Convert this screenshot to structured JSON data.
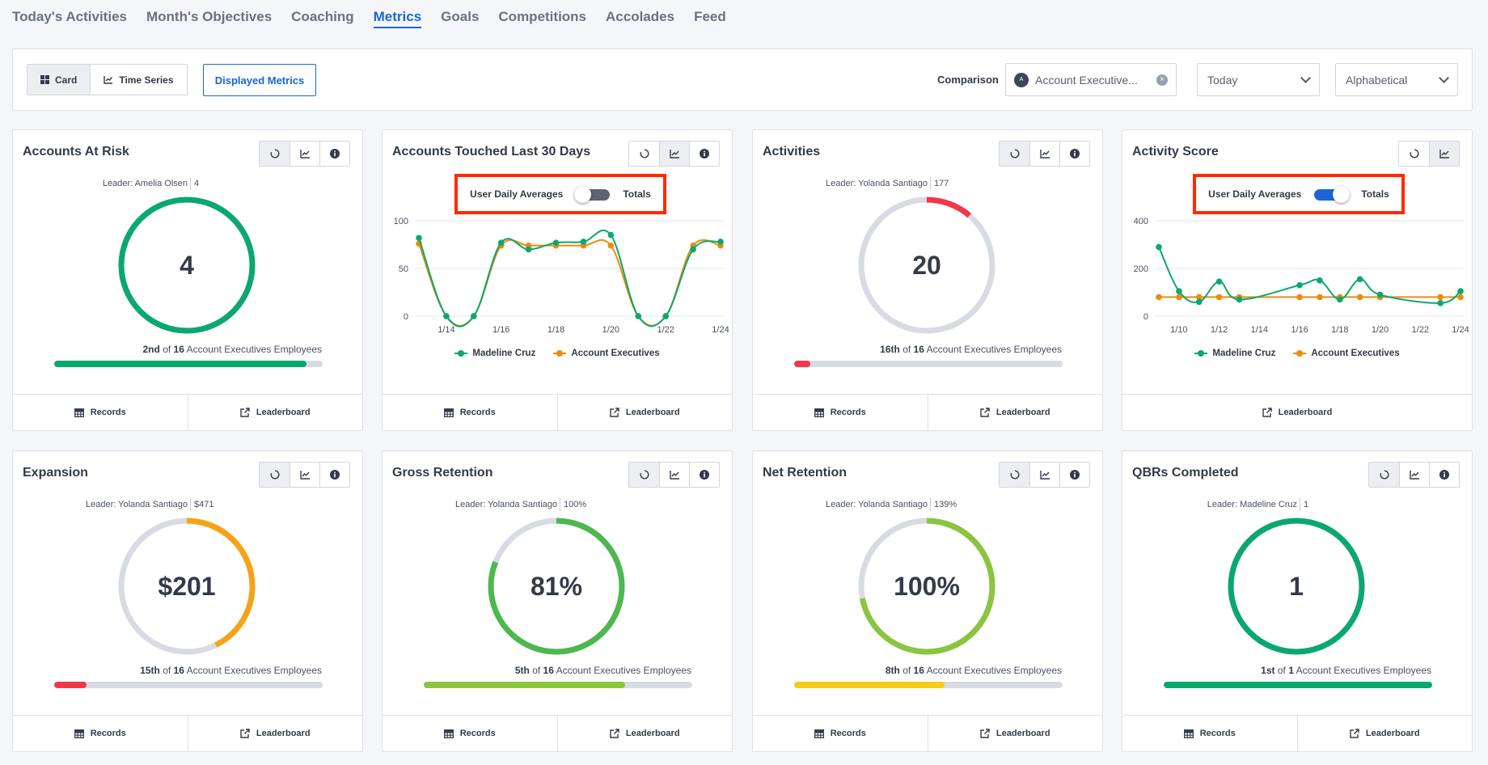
{
  "nav": {
    "tabs": [
      {
        "label": "Today's Activities"
      },
      {
        "label": "Month's Objectives"
      },
      {
        "label": "Coaching"
      },
      {
        "label": "Metrics"
      },
      {
        "label": "Goals"
      },
      {
        "label": "Competitions"
      },
      {
        "label": "Accolades"
      },
      {
        "label": "Feed"
      }
    ],
    "active": "Metrics"
  },
  "toolbar": {
    "view_card": "Card",
    "view_timeseries": "Time Series",
    "displayed_metrics": "Displayed Metrics",
    "comparison_label": "Comparison",
    "comparison_value": "Account Executive...",
    "comparison_avatar": "A",
    "period_value": "Today",
    "sort_value": "Alphabetical"
  },
  "common": {
    "records": "Records",
    "leaderboard": "Leaderboard",
    "of": "of",
    "group_suffix": "Account Executives Employees"
  },
  "cards": [
    {
      "title": "Accounts At Risk",
      "leader_label": "Leader: Amelia Olsen",
      "leader_value": "4",
      "value": "4",
      "rank": "2nd",
      "total": "16",
      "gauge_fraction": 1.0,
      "gauge_color": "#0aa86f",
      "rank_fraction": 0.94,
      "rank_color": "#0aa86f"
    },
    {
      "title": "Accounts Touched Last 30 Days",
      "toggle_left": "User Daily Averages",
      "toggle_right": "Totals",
      "toggle_on": false,
      "legend": [
        "Madeline Cruz",
        "Account Executives"
      ]
    },
    {
      "title": "Activities",
      "leader_label": "Leader: Yolanda Santiago",
      "leader_value": "177",
      "value": "20",
      "rank": "16th",
      "total": "16",
      "gauge_fraction": 0.113,
      "gauge_color": "#f0384a",
      "rank_fraction": 0.06,
      "rank_color": "#f0384a"
    },
    {
      "title": "Activity Score",
      "toggle_left": "User Daily Averages",
      "toggle_right": "Totals",
      "toggle_on": true,
      "legend": [
        "Madeline Cruz",
        "Account Executives"
      ]
    },
    {
      "title": "Expansion",
      "leader_label": "Leader: Yolanda Santiago",
      "leader_value": "$471",
      "value": "$201",
      "rank": "15th",
      "total": "16",
      "gauge_fraction": 0.427,
      "gauge_color": "#f6a316",
      "rank_fraction": 0.12,
      "rank_color": "#f0384a"
    },
    {
      "title": "Gross Retention",
      "leader_label": "Leader: Yolanda Santiago",
      "leader_value": "100%",
      "value": "81%",
      "rank": "5th",
      "total": "16",
      "gauge_fraction": 0.81,
      "gauge_color": "#4cb84f",
      "rank_fraction": 0.75,
      "rank_color": "#8bc43f"
    },
    {
      "title": "Net Retention",
      "leader_label": "Leader: Yolanda Santiago",
      "leader_value": "139%",
      "value": "100%",
      "rank": "8th",
      "total": "16",
      "gauge_fraction": 0.72,
      "gauge_color": "#8bc43f",
      "rank_fraction": 0.56,
      "rank_color": "#f5cc17"
    },
    {
      "title": "QBRs Completed",
      "leader_label": "Leader: Madeline Cruz",
      "leader_value": "1",
      "value": "1",
      "rank": "1st",
      "total": "1",
      "gauge_fraction": 1.0,
      "gauge_color": "#0aa86f",
      "rank_fraction": 1.0,
      "rank_color": "#0aa86f"
    }
  ],
  "chart_data": [
    {
      "type": "line",
      "title": "Accounts Touched Last 30 Days",
      "x": [
        "1/13",
        "1/14",
        "1/15",
        "1/16",
        "1/17",
        "1/18",
        "1/19",
        "1/20",
        "1/21",
        "1/22",
        "1/23",
        "1/24"
      ],
      "xticks": [
        "1/14",
        "1/16",
        "1/18",
        "1/20",
        "1/22",
        "1/24"
      ],
      "yticks": [
        0,
        50,
        100
      ],
      "ylim": [
        0,
        100
      ],
      "series": [
        {
          "name": "Madeline Cruz",
          "color": "#0aa86f",
          "values": [
            82,
            0,
            0,
            77,
            70,
            77,
            78,
            85,
            0,
            0,
            70,
            78
          ]
        },
        {
          "name": "Account Executives",
          "color": "#f08a0c",
          "values": [
            76,
            0,
            0,
            74,
            74,
            74,
            74,
            74,
            0,
            0,
            74,
            74
          ]
        }
      ],
      "legend_position": "bottom"
    },
    {
      "type": "line",
      "title": "Activity Score",
      "x": [
        "1/9",
        "1/10",
        "1/11",
        "1/12",
        "1/13",
        "1/14",
        "1/15",
        "1/16",
        "1/17",
        "1/18",
        "1/19",
        "1/20",
        "1/21",
        "1/22",
        "1/23",
        "1/24"
      ],
      "xticks": [
        "1/10",
        "1/12",
        "1/14",
        "1/16",
        "1/18",
        "1/20",
        "1/22",
        "1/24"
      ],
      "yticks": [
        0,
        200,
        400
      ],
      "ylim": [
        0,
        400
      ],
      "series": [
        {
          "name": "Madeline Cruz",
          "color": "#0aa86f",
          "values": [
            290,
            105,
            60,
            145,
            70,
            null,
            null,
            130,
            150,
            70,
            155,
            90,
            null,
            null,
            55,
            105
          ]
        },
        {
          "name": "Account Executives",
          "color": "#f08a0c",
          "values": [
            80,
            80,
            80,
            80,
            80,
            null,
            null,
            80,
            80,
            80,
            80,
            80,
            null,
            null,
            80,
            80
          ]
        }
      ],
      "legend_position": "bottom"
    }
  ]
}
